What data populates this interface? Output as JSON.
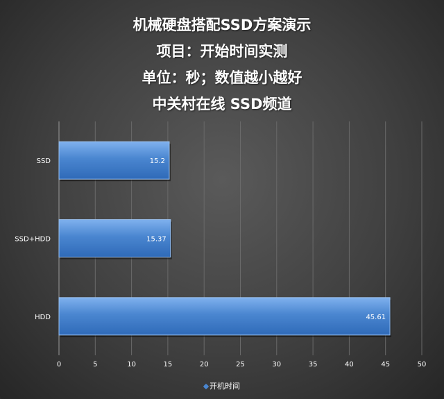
{
  "chart_data": {
    "type": "bar",
    "orientation": "horizontal",
    "title_lines": [
      "机械硬盘搭配SSD方案演示",
      "项目：开始时间实测",
      "单位：秒；数值越小越好",
      "中关村在线  SSD频道"
    ],
    "categories": [
      "SSD",
      "SSD+HDD",
      "HDD"
    ],
    "series": [
      {
        "name": "开机时间",
        "values": [
          15.2,
          15.37,
          45.61
        ]
      }
    ],
    "xlim": [
      0,
      50
    ],
    "xticks": [
      0,
      5,
      10,
      15,
      20,
      25,
      30,
      35,
      40,
      45,
      50
    ],
    "grid": true,
    "legend": "bottom",
    "bar_color": "#4a86d0",
    "bar_highlight": "#6fa6e8",
    "bar_shadow": "#2f5f9e"
  }
}
